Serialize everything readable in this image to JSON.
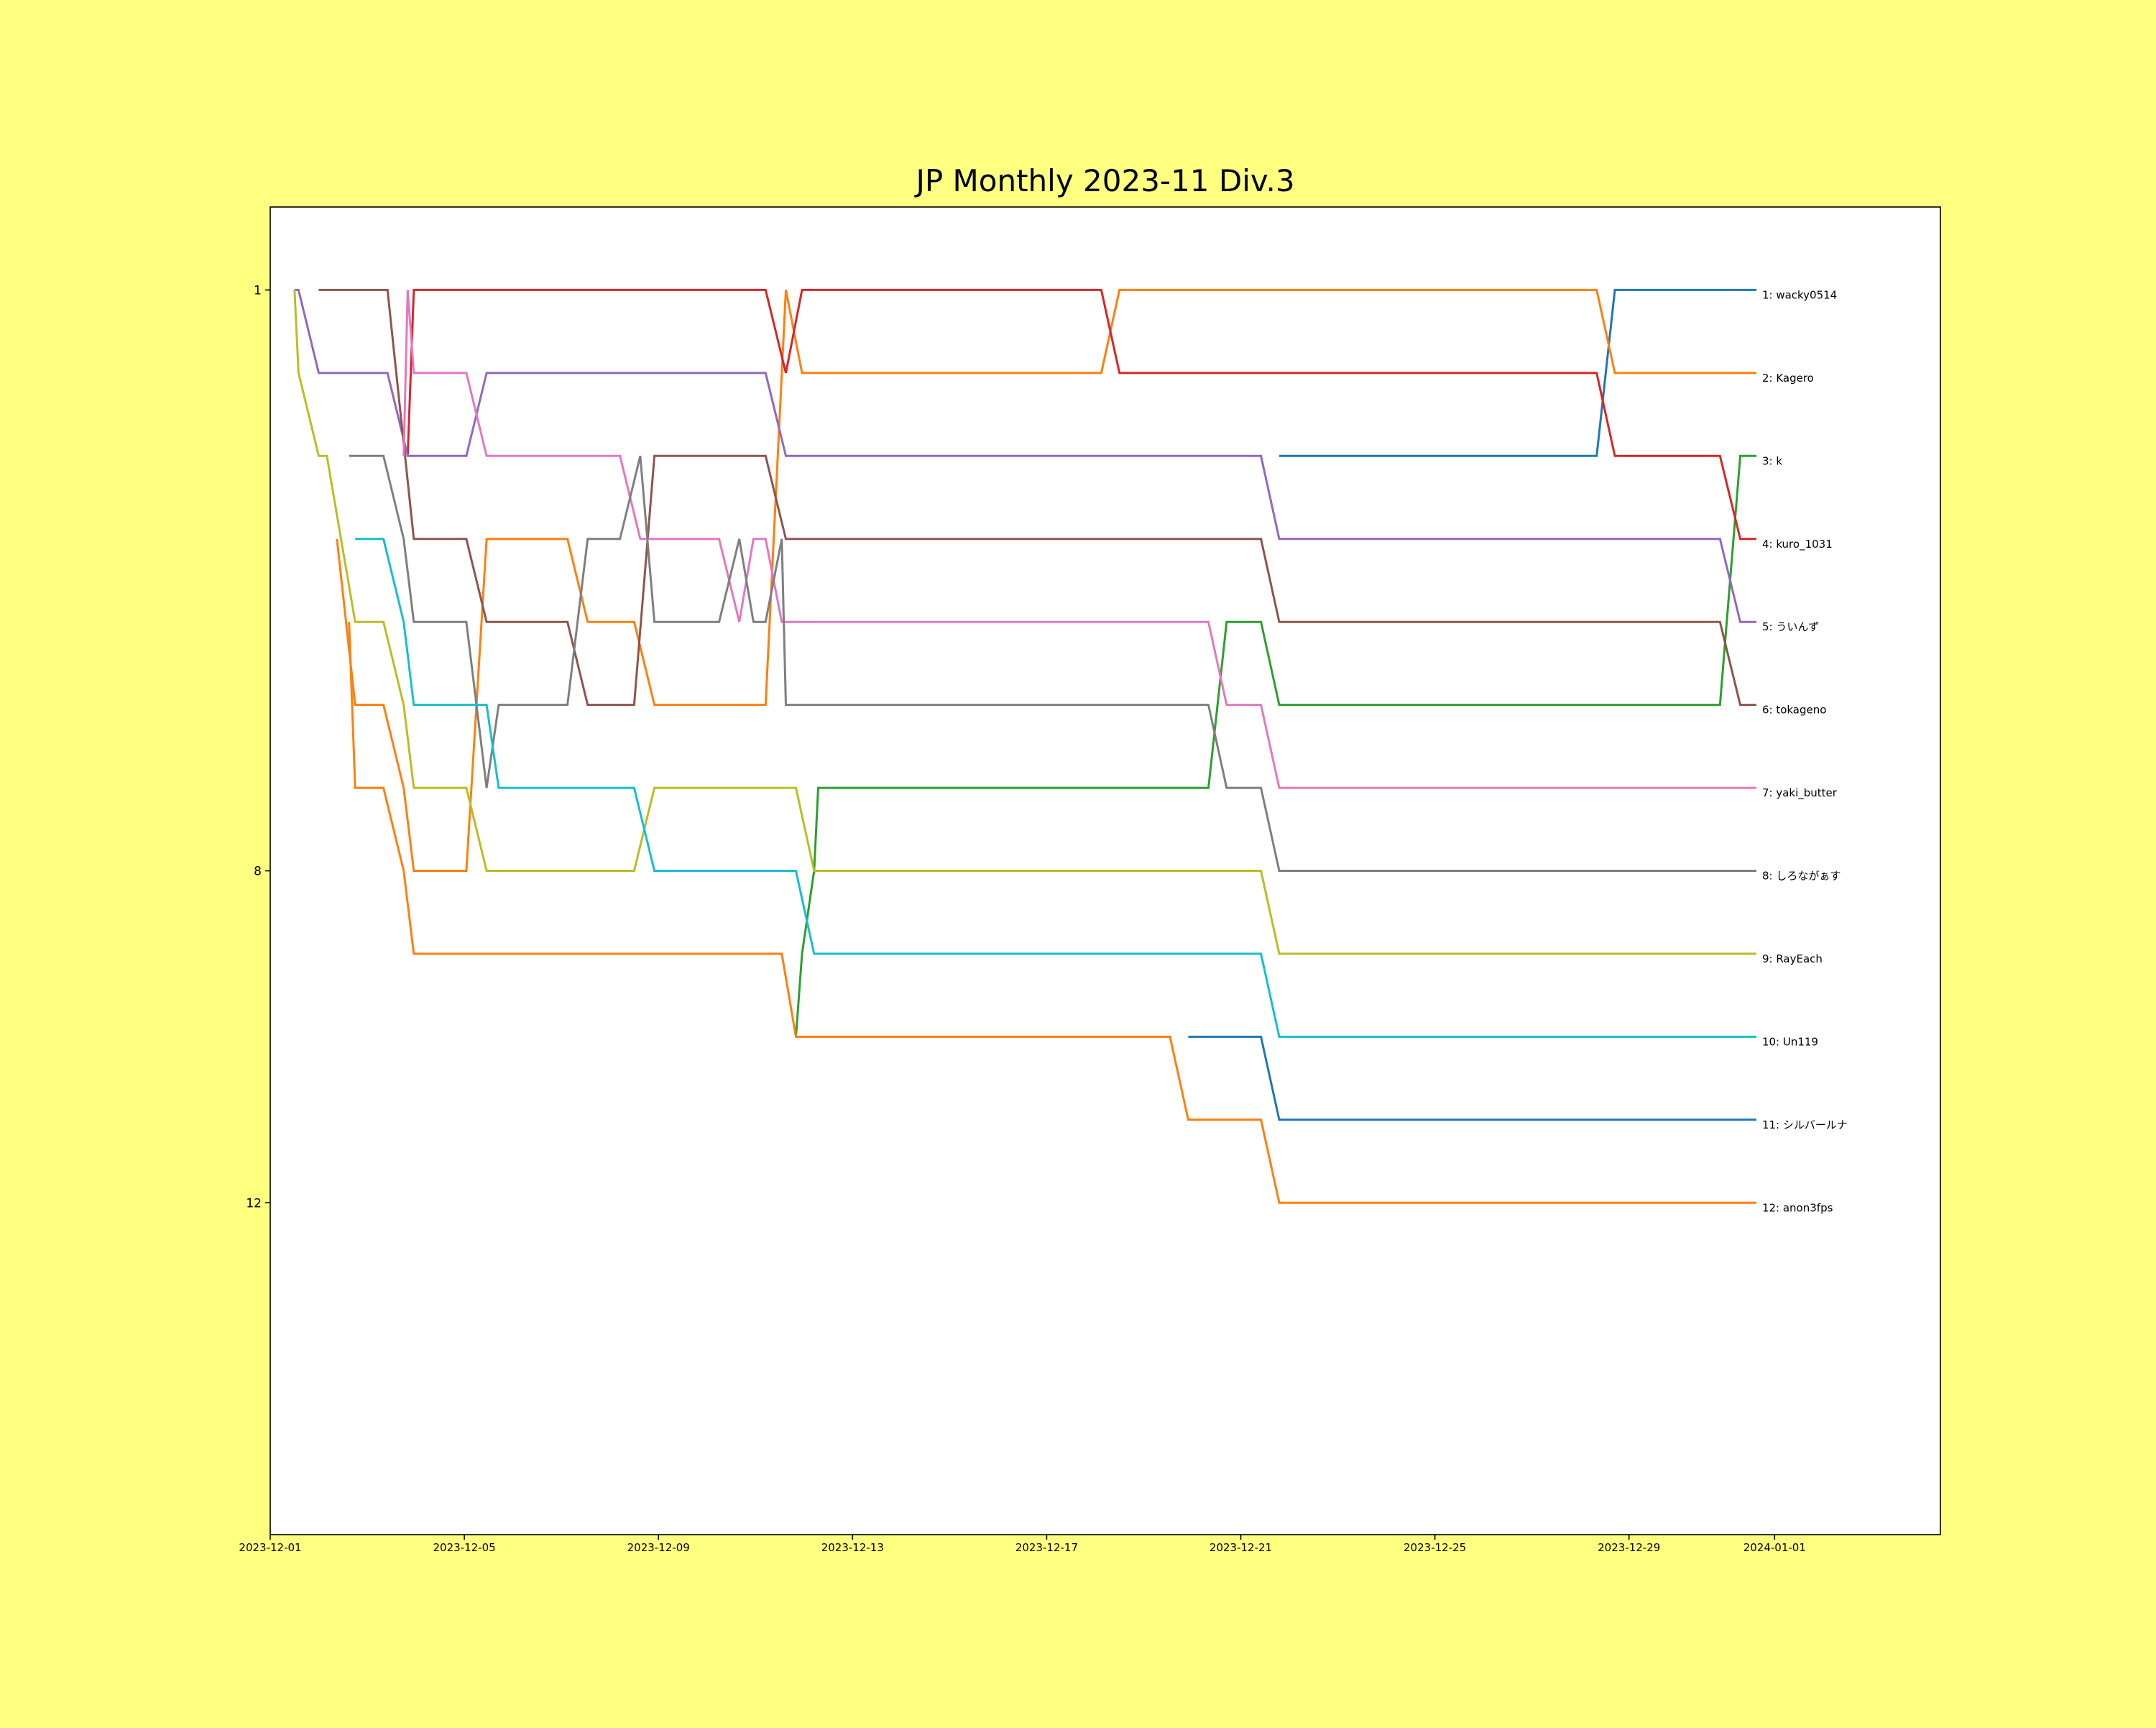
{
  "chart_data": {
    "type": "line",
    "title": "JP Monthly 2023-11 Div.3",
    "xlim": [
      "2023-12-01T00:00",
      "2024-01-04T10:00"
    ],
    "xticks": [
      "2023-12-01",
      "2023-12-05",
      "2023-12-09",
      "2023-12-13",
      "2023-12-17",
      "2023-12-21",
      "2023-12-25",
      "2023-12-29",
      "2024-01-01"
    ],
    "ylim": [
      16,
      0
    ],
    "yticks": [
      1,
      8,
      12
    ],
    "grid": false,
    "series": [
      {
        "label": "1: wacky0514",
        "color": "#1f77b4",
        "x": [
          "2023-12-21T19:00",
          "2023-12-28T08:00",
          "2023-12-28T17:00",
          "2023-12-31T15:00"
        ],
        "values": [
          3,
          3,
          1,
          1
        ]
      },
      {
        "label": "2: Kagero",
        "color": "#ff7f0e",
        "x": [
          "2023-12-02T09:00",
          "2023-12-02T18:00",
          "2023-12-03T08:00",
          "2023-12-03T18:00",
          "2023-12-03T23:00",
          "2023-12-05T01:00",
          "2023-12-05T11:00",
          "2023-12-07T03:00",
          "2023-12-07T13:00",
          "2023-12-08T12:00",
          "2023-12-08T22:00",
          "2023-12-11T05:00",
          "2023-12-11T15:00",
          "2023-12-11T23:00",
          "2023-12-18T03:00",
          "2023-12-18T12:00",
          "2023-12-28T08:00",
          "2023-12-28T17:00",
          "2023-12-31T15:00"
        ],
        "values": [
          4,
          6,
          6,
          7,
          8,
          8,
          4,
          4,
          5,
          5,
          6,
          6,
          1,
          2,
          2,
          1,
          1,
          2,
          2
        ]
      },
      {
        "label": "3: k",
        "color": "#2ca02c",
        "x": [
          "2023-12-11T20:00",
          "2023-12-11T23:00",
          "2023-12-12T05:00",
          "2023-12-12T07:00",
          "2023-12-20T08:00",
          "2023-12-20T17:00",
          "2023-12-21T10:00",
          "2023-12-21T19:00",
          "2023-12-30T21:00",
          "2023-12-31T07:00",
          "2023-12-31T15:00"
        ],
        "values": [
          10,
          9,
          8,
          7,
          7,
          5,
          5,
          6,
          6,
          3,
          3
        ]
      },
      {
        "label": "4: kuro_1031",
        "color": "#d62728",
        "x": [
          "2023-12-03T20:00",
          "2023-12-03T23:00",
          "2023-12-11T05:00",
          "2023-12-11T15:00",
          "2023-12-11T23:00",
          "2023-12-18T03:00",
          "2023-12-18T12:00",
          "2023-12-28T08:00",
          "2023-12-28T17:00",
          "2023-12-30T21:00",
          "2023-12-31T07:00",
          "2023-12-31T15:00"
        ],
        "values": [
          3,
          1,
          1,
          2,
          1,
          1,
          2,
          2,
          3,
          3,
          4,
          4
        ]
      },
      {
        "label": "5: ういんず",
        "color": "#9467bd",
        "x": [
          "2023-12-01T12:00",
          "2023-12-01T14:00",
          "2023-12-02T00:00",
          "2023-12-03T10:00",
          "2023-12-03T20:00",
          "2023-12-05T01:00",
          "2023-12-05T11:00",
          "2023-12-11T05:00",
          "2023-12-11T15:00",
          "2023-12-21T10:00",
          "2023-12-21T19:00",
          "2023-12-30T21:00",
          "2023-12-31T07:00",
          "2023-12-31T15:00"
        ],
        "values": [
          1,
          1,
          2,
          2,
          3,
          3,
          2,
          2,
          3,
          3,
          4,
          4,
          5,
          5
        ]
      },
      {
        "label": "6: tokageno",
        "color": "#8c564b",
        "x": [
          "2023-12-02T00:00",
          "2023-12-03T10:00",
          "2023-12-03T23:00",
          "2023-12-05T01:00",
          "2023-12-05T11:00",
          "2023-12-07T03:00",
          "2023-12-07T13:00",
          "2023-12-08T12:00",
          "2023-12-08T22:00",
          "2023-12-11T05:00",
          "2023-12-11T15:00",
          "2023-12-21T10:00",
          "2023-12-21T19:00",
          "2023-12-30T21:00",
          "2023-12-31T07:00",
          "2023-12-31T15:00"
        ],
        "values": [
          1,
          1,
          4,
          4,
          5,
          5,
          6,
          6,
          3,
          3,
          4,
          4,
          5,
          5,
          6,
          6
        ]
      },
      {
        "label": "7: yaki_butter",
        "color": "#e377c2",
        "x": [
          "2023-12-03T18:00",
          "2023-12-03T20:00",
          "2023-12-03T23:00",
          "2023-12-05T01:00",
          "2023-12-05T11:00",
          "2023-12-08T05:00",
          "2023-12-08T15:00",
          "2023-12-08T22:00",
          "2023-12-10T06:00",
          "2023-12-10T16:00",
          "2023-12-10T23:00",
          "2023-12-11T05:00",
          "2023-12-11T13:00",
          "2023-12-20T08:00",
          "2023-12-20T17:00",
          "2023-12-21T10:00",
          "2023-12-21T19:00",
          "2023-12-31T15:00"
        ],
        "values": [
          3,
          1,
          2,
          2,
          3,
          3,
          4,
          4,
          4,
          5,
          4,
          4,
          5,
          5,
          6,
          6,
          7,
          7
        ]
      },
      {
        "label": "8: しろながぁす",
        "color": "#7f7f7f",
        "x": [
          "2023-12-02T15:00",
          "2023-12-03T08:00",
          "2023-12-03T18:00",
          "2023-12-03T23:00",
          "2023-12-05T01:00",
          "2023-12-05T11:00",
          "2023-12-05T17:00",
          "2023-12-07T03:00",
          "2023-12-07T13:00",
          "2023-12-08T05:00",
          "2023-12-08T15:00",
          "2023-12-08T22:00",
          "2023-12-10T06:00",
          "2023-12-10T16:00",
          "2023-12-10T23:00",
          "2023-12-11T05:00",
          "2023-12-11T13:00",
          "2023-12-11T15:00",
          "2023-12-20T08:00",
          "2023-12-20T17:00",
          "2023-12-21T10:00",
          "2023-12-21T19:00",
          "2023-12-31T15:00"
        ],
        "values": [
          3,
          3,
          4,
          5,
          5,
          7,
          6,
          6,
          4,
          4,
          3,
          5,
          5,
          4,
          5,
          5,
          4,
          6,
          6,
          7,
          7,
          8,
          8
        ]
      },
      {
        "label": "9: RayEach",
        "color": "#bcbd22",
        "x": [
          "2023-12-01T12:00",
          "2023-12-01T14:00",
          "2023-12-02T00:00",
          "2023-12-02T04:00",
          "2023-12-02T18:00",
          "2023-12-03T08:00",
          "2023-12-03T18:00",
          "2023-12-03T23:00",
          "2023-12-05T01:00",
          "2023-12-05T11:00",
          "2023-12-08T12:00",
          "2023-12-08T22:00",
          "2023-12-11T20:00",
          "2023-12-12T05:00",
          "2023-12-21T10:00",
          "2023-12-21T19:00",
          "2023-12-31T15:00"
        ],
        "values": [
          1,
          2,
          3,
          3,
          5,
          5,
          6,
          7,
          7,
          8,
          8,
          7,
          7,
          8,
          8,
          9,
          9
        ]
      },
      {
        "label": "10: Un119",
        "color": "#17becf",
        "x": [
          "2023-12-02T18:00",
          "2023-12-03T08:00",
          "2023-12-03T18:00",
          "2023-12-03T23:00",
          "2023-12-05T11:00",
          "2023-12-05T17:00",
          "2023-12-08T12:00",
          "2023-12-08T22:00",
          "2023-12-11T20:00",
          "2023-12-12T05:00",
          "2023-12-21T10:00",
          "2023-12-21T19:00",
          "2023-12-31T15:00"
        ],
        "values": [
          4,
          4,
          5,
          6,
          6,
          7,
          7,
          8,
          8,
          9,
          9,
          10,
          10
        ]
      },
      {
        "label": "11: シルバールナ",
        "color": "#1f77b4",
        "x": [
          "2023-12-19T22:00",
          "2023-12-21T10:00",
          "2023-12-21T19:00",
          "2023-12-31T15:00"
        ],
        "values": [
          10,
          10,
          11,
          11
        ]
      },
      {
        "label": "12: anon3fps",
        "color": "#ff7f0e",
        "x": [
          "2023-12-02T15:00",
          "2023-12-02T18:00",
          "2023-12-03T08:00",
          "2023-12-03T18:00",
          "2023-12-03T23:00",
          "2023-12-11T13:00",
          "2023-12-11T20:00",
          "2023-12-19T13:00",
          "2023-12-19T22:00",
          "2023-12-21T10:00",
          "2023-12-21T19:00",
          "2023-12-31T15:00"
        ],
        "values": [
          5,
          7,
          7,
          8,
          9,
          9,
          10,
          10,
          11,
          11,
          12,
          12
        ]
      }
    ]
  }
}
